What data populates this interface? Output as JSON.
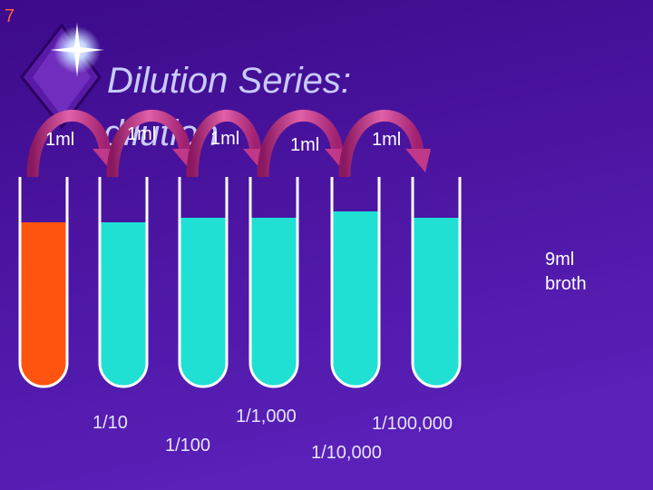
{
  "slide_number": "7",
  "title": "Dilution Series:",
  "subtitle": "dilution",
  "transfers": [
    "1ml",
    "1ml",
    "1ml",
    "1ml",
    "1ml"
  ],
  "dilutions": [
    "1/10",
    "1/100",
    "1/1,000",
    "1/10,000",
    "1/100,000"
  ],
  "broth_label": [
    "9ml",
    "broth"
  ]
}
